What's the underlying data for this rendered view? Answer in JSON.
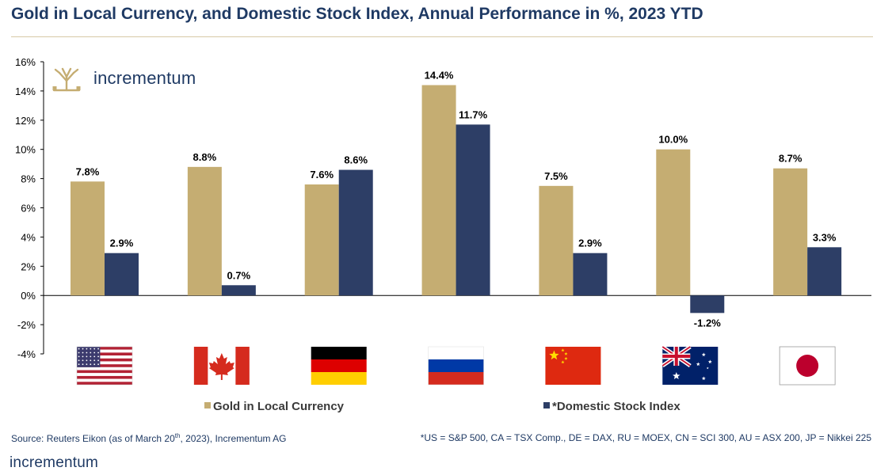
{
  "header": {
    "title": "Gold in Local Currency, and Domestic Stock Index, Annual Performance in %, 2023 YTD"
  },
  "logo": {
    "name": "incrementum",
    "icon": "tree-icon"
  },
  "footer": {
    "source": "Source: Reuters Eikon  (as of March 20th, 2023), Incrementum AG",
    "note": "*US = S&P 500, CA = TSX Comp., DE = DAX, RU = MOEX, CN = SCI 300, AU = ASX 200, JP = Nikkei 225",
    "logo": "incrementum"
  },
  "colors": {
    "gold": "#c5ad72",
    "stock": "#2d3e66",
    "title": "#1f3a64"
  },
  "chart_data": {
    "type": "bar",
    "categories": [
      "US",
      "CA",
      "DE",
      "RU",
      "CN",
      "AU",
      "JP"
    ],
    "category_icons": [
      "us-flag-icon",
      "canada-flag-icon",
      "germany-flag-icon",
      "russia-flag-icon",
      "china-flag-icon",
      "australia-flag-icon",
      "japan-flag-icon"
    ],
    "series": [
      {
        "name": "Gold in Local Currency",
        "values": [
          7.8,
          8.8,
          7.6,
          14.4,
          7.5,
          10.0,
          8.7
        ],
        "labels": [
          "7.8%",
          "8.8%",
          "7.6%",
          "14.4%",
          "7.5%",
          "10.0%",
          "8.7%"
        ]
      },
      {
        "name": "*Domestic Stock Index",
        "values": [
          2.9,
          0.7,
          8.6,
          11.7,
          2.9,
          -1.2,
          3.3
        ],
        "labels": [
          "2.9%",
          "0.7%",
          "8.6%",
          "11.7%",
          "2.9%",
          "-1.2%",
          "3.3%"
        ]
      }
    ],
    "yticks": [
      "16%",
      "14%",
      "12%",
      "10%",
      "8%",
      "6%",
      "4%",
      "2%",
      "0%",
      "-2%",
      "-4%"
    ],
    "ylim": [
      -4,
      16
    ],
    "grid": false,
    "legend": "bottom"
  }
}
